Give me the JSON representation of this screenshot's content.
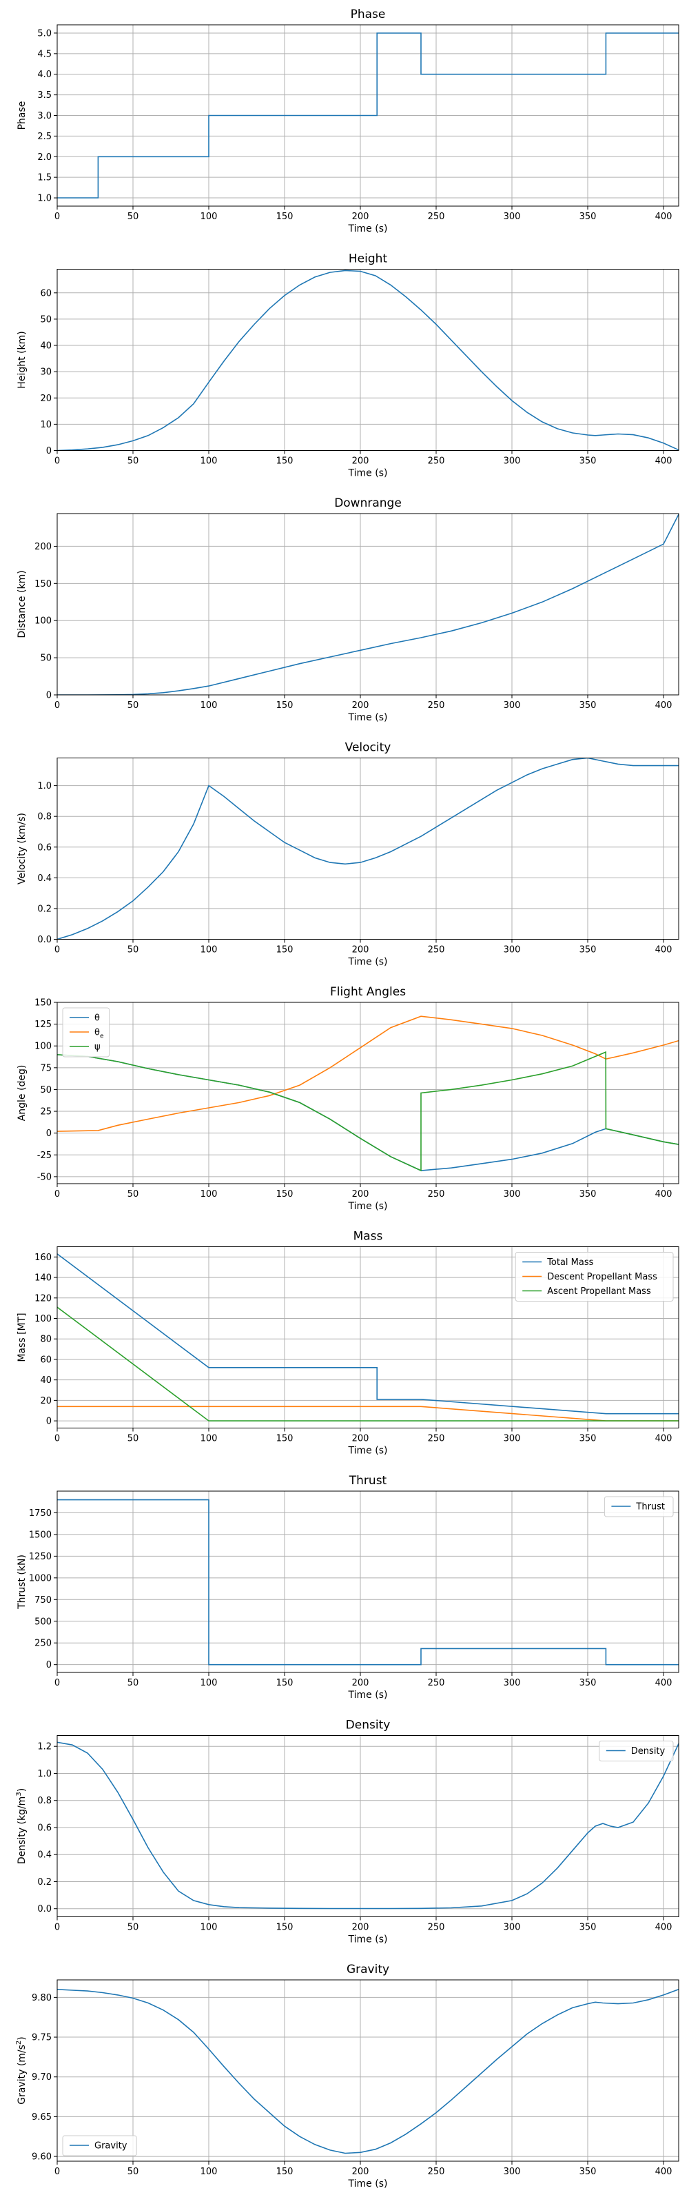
{
  "colors": {
    "blue": "#1f77b4",
    "orange": "#ff7f0e",
    "green": "#2ca02c",
    "grid": "#b0b0b0"
  },
  "chart_data": [
    {
      "type": "line",
      "title": "Phase",
      "xlabel": "Time (s)",
      "ylabel": "Phase",
      "xlim": [
        0,
        410
      ],
      "ylim": [
        0.8,
        5.2
      ],
      "xticks": [
        0,
        50,
        100,
        150,
        200,
        250,
        300,
        350,
        400
      ],
      "yticks": [
        1.0,
        1.5,
        2.0,
        2.5,
        3.0,
        3.5,
        4.0,
        4.5,
        5.0
      ],
      "tick_decimals": 1,
      "grid": true,
      "series": [
        {
          "color": "blue",
          "step": true,
          "x": [
            0,
            27,
            100,
            211,
            240,
            362,
            410
          ],
          "y": [
            1,
            2,
            3,
            5,
            4,
            5,
            5
          ]
        }
      ]
    },
    {
      "type": "line",
      "title": "Height",
      "xlabel": "Time (s)",
      "ylabel": "Height (km)",
      "xlim": [
        0,
        410
      ],
      "ylim": [
        0,
        69
      ],
      "xticks": [
        0,
        50,
        100,
        150,
        200,
        250,
        300,
        350,
        400
      ],
      "yticks": [
        0,
        10,
        20,
        30,
        40,
        50,
        60
      ],
      "grid": true,
      "series": [
        {
          "color": "blue",
          "x": [
            0,
            10,
            20,
            30,
            40,
            50,
            60,
            70,
            80,
            90,
            100,
            110,
            120,
            130,
            140,
            150,
            160,
            170,
            180,
            190,
            200,
            210,
            220,
            230,
            240,
            250,
            260,
            270,
            280,
            290,
            300,
            310,
            320,
            330,
            340,
            350,
            355,
            360,
            370,
            380,
            390,
            400,
            410
          ],
          "y": [
            0,
            0.2,
            0.6,
            1.2,
            2.2,
            3.7,
            5.7,
            8.7,
            12.5,
            17.8,
            26.0,
            34.0,
            41.5,
            48.0,
            54.0,
            59.0,
            63.0,
            66.0,
            67.8,
            68.5,
            68.2,
            66.5,
            63.0,
            58.5,
            53.5,
            48.0,
            42.0,
            36.0,
            30.0,
            24.3,
            19.0,
            14.5,
            10.9,
            8.3,
            6.7,
            5.9,
            5.7,
            5.9,
            6.3,
            6.0,
            4.8,
            2.8,
            0.2
          ]
        }
      ]
    },
    {
      "type": "line",
      "title": "Downrange",
      "xlabel": "Time (s)",
      "ylabel": "Distance (km)",
      "xlim": [
        0,
        410
      ],
      "ylim": [
        0,
        244
      ],
      "xticks": [
        0,
        50,
        100,
        150,
        200,
        250,
        300,
        350,
        400
      ],
      "yticks": [
        0,
        50,
        100,
        150,
        200
      ],
      "grid": true,
      "series": [
        {
          "color": "blue",
          "x": [
            0,
            20,
            40,
            50,
            60,
            70,
            80,
            90,
            100,
            120,
            140,
            160,
            180,
            200,
            220,
            240,
            260,
            280,
            300,
            320,
            340,
            360,
            380,
            400,
            410
          ],
          "y": [
            0,
            0,
            0.2,
            0.6,
            1.5,
            3,
            5.5,
            8.5,
            12,
            22,
            32,
            42,
            51,
            60,
            69,
            77,
            86,
            97,
            110,
            125,
            143,
            163,
            183,
            203,
            243
          ]
        }
      ]
    },
    {
      "type": "line",
      "title": "Velocity",
      "xlabel": "Time (s)",
      "ylabel": "Velocity (km/s)",
      "xlim": [
        0,
        410
      ],
      "ylim": [
        0,
        1.18
      ],
      "xticks": [
        0,
        50,
        100,
        150,
        200,
        250,
        300,
        350,
        400
      ],
      "yticks": [
        0.0,
        0.2,
        0.4,
        0.6,
        0.8,
        1.0
      ],
      "tick_decimals": 1,
      "grid": true,
      "series": [
        {
          "color": "blue",
          "x": [
            0,
            10,
            20,
            30,
            40,
            50,
            60,
            70,
            80,
            90,
            100,
            110,
            120,
            130,
            140,
            150,
            160,
            170,
            180,
            190,
            200,
            210,
            220,
            230,
            240,
            250,
            260,
            270,
            280,
            290,
            300,
            310,
            320,
            330,
            340,
            350,
            360,
            370,
            380,
            390,
            400,
            410
          ],
          "y": [
            0,
            0.03,
            0.07,
            0.12,
            0.18,
            0.25,
            0.34,
            0.44,
            0.57,
            0.75,
            1.0,
            0.93,
            0.85,
            0.77,
            0.7,
            0.63,
            0.58,
            0.53,
            0.5,
            0.49,
            0.5,
            0.53,
            0.57,
            0.62,
            0.67,
            0.73,
            0.79,
            0.85,
            0.91,
            0.97,
            1.02,
            1.07,
            1.11,
            1.14,
            1.17,
            1.18,
            1.16,
            1.14,
            1.13,
            1.13,
            1.13,
            1.13
          ]
        }
      ]
    },
    {
      "type": "line",
      "title": "Flight Angles",
      "xlabel": "Time (s)",
      "ylabel": "Angle (deg)",
      "xlim": [
        0,
        410
      ],
      "ylim": [
        -58,
        150
      ],
      "xticks": [
        0,
        50,
        100,
        150,
        200,
        250,
        300,
        350,
        400
      ],
      "yticks": [
        -50,
        -25,
        0,
        25,
        50,
        75,
        100,
        125,
        150
      ],
      "grid": true,
      "legend": {
        "position": "top-left",
        "entries": [
          "θ",
          "θ",
          "ψ"
        ],
        "subscripts": [
          "",
          "e",
          ""
        ],
        "colors": [
          "blue",
          "orange",
          "green"
        ]
      },
      "series": [
        {
          "color": "blue",
          "x": [
            0,
            20,
            40,
            60,
            80,
            100,
            120,
            140,
            160,
            180,
            200,
            220,
            240,
            260,
            280,
            300,
            320,
            340,
            355,
            362,
            380,
            400,
            410
          ],
          "y": [
            90,
            88,
            82,
            74,
            67,
            61,
            55,
            47,
            35,
            16,
            -6,
            -27,
            -43,
            -40,
            -35,
            -30,
            -23,
            -12,
            1,
            5,
            -2,
            -10,
            -13
          ]
        },
        {
          "color": "orange",
          "x": [
            0,
            27,
            40,
            60,
            80,
            100,
            120,
            140,
            160,
            180,
            200,
            220,
            240,
            260,
            280,
            300,
            320,
            340,
            355,
            362,
            380,
            400,
            410
          ],
          "y": [
            2,
            3,
            9,
            16,
            23,
            29,
            35,
            43,
            55,
            75,
            98,
            121,
            134,
            130,
            125,
            120,
            112,
            101,
            91,
            85,
            92,
            101,
            106
          ]
        },
        {
          "color": "green",
          "x": [
            0,
            20,
            40,
            60,
            80,
            100,
            120,
            140,
            160,
            180,
            200,
            220,
            240,
            240.01,
            260,
            280,
            300,
            320,
            340,
            361.9,
            362,
            380,
            400,
            410
          ],
          "y": [
            90,
            88,
            82,
            74,
            67,
            61,
            55,
            47,
            35,
            16,
            -6,
            -27,
            -43,
            46,
            50,
            55,
            61,
            68,
            77,
            93,
            5,
            -2,
            -10,
            -13
          ]
        }
      ]
    },
    {
      "type": "line",
      "title": "Mass",
      "xlabel": "Time (s)",
      "ylabel": "Mass [MT]",
      "xlim": [
        0,
        410
      ],
      "ylim": [
        -7,
        170
      ],
      "xticks": [
        0,
        50,
        100,
        150,
        200,
        250,
        300,
        350,
        400
      ],
      "yticks": [
        0,
        20,
        40,
        60,
        80,
        100,
        120,
        140,
        160
      ],
      "grid": true,
      "legend": {
        "position": "top-right",
        "entries": [
          "Total Mass",
          "Descent Propellant Mass",
          "Ascent Propellant Mass"
        ],
        "colors": [
          "blue",
          "orange",
          "green"
        ]
      },
      "series": [
        {
          "color": "blue",
          "x": [
            0,
            100,
            211,
            211.01,
            240,
            362,
            410
          ],
          "y": [
            163,
            52,
            52,
            21,
            21,
            7,
            7
          ]
        },
        {
          "color": "orange",
          "x": [
            0,
            240,
            362,
            410
          ],
          "y": [
            14,
            14,
            0,
            0
          ]
        },
        {
          "color": "green",
          "x": [
            0,
            100,
            410
          ],
          "y": [
            111,
            0,
            0
          ]
        }
      ]
    },
    {
      "type": "line",
      "title": "Thrust",
      "xlabel": "Time (s)",
      "ylabel": "Thrust (kN)",
      "xlim": [
        0,
        410
      ],
      "ylim": [
        -90,
        2000
      ],
      "xticks": [
        0,
        50,
        100,
        150,
        200,
        250,
        300,
        350,
        400
      ],
      "yticks": [
        0,
        250,
        500,
        750,
        1000,
        1250,
        1500,
        1750
      ],
      "grid": true,
      "legend": {
        "position": "top-right",
        "entries": [
          "Thrust"
        ],
        "colors": [
          "blue"
        ]
      },
      "series": [
        {
          "color": "blue",
          "step": true,
          "x": [
            0,
            100,
            240,
            362,
            410
          ],
          "y": [
            1900,
            0,
            185,
            0,
            0
          ]
        }
      ]
    },
    {
      "type": "line",
      "title": "Density",
      "xlabel": "Time (s)",
      "ylabel": "Density (kg/m",
      "ylabel_sup": "3",
      "ylabel_end": ")",
      "xlim": [
        0,
        410
      ],
      "ylim": [
        -0.06,
        1.28
      ],
      "xticks": [
        0,
        50,
        100,
        150,
        200,
        250,
        300,
        350,
        400
      ],
      "yticks": [
        0.0,
        0.2,
        0.4,
        0.6,
        0.8,
        1.0,
        1.2
      ],
      "tick_decimals": 1,
      "grid": true,
      "legend": {
        "position": "top-right",
        "entries": [
          "Density"
        ],
        "colors": [
          "blue"
        ]
      },
      "series": [
        {
          "color": "blue",
          "x": [
            0,
            10,
            20,
            30,
            40,
            50,
            60,
            70,
            80,
            90,
            100,
            110,
            120,
            140,
            160,
            180,
            200,
            220,
            240,
            260,
            280,
            300,
            310,
            320,
            330,
            340,
            350,
            355,
            360,
            365,
            370,
            380,
            390,
            400,
            410
          ],
          "y": [
            1.23,
            1.21,
            1.15,
            1.03,
            0.86,
            0.66,
            0.45,
            0.27,
            0.13,
            0.06,
            0.03,
            0.015,
            0.008,
            0.004,
            0.002,
            0.001,
            0.001,
            0.001,
            0.002,
            0.006,
            0.02,
            0.06,
            0.11,
            0.19,
            0.3,
            0.43,
            0.56,
            0.61,
            0.63,
            0.61,
            0.6,
            0.64,
            0.78,
            0.98,
            1.22
          ]
        }
      ]
    },
    {
      "type": "line",
      "title": "Gravity",
      "xlabel": "Time (s)",
      "ylabel": "Gravity (m/s",
      "ylabel_sup": "2",
      "ylabel_end": ")",
      "xlim": [
        0,
        410
      ],
      "ylim": [
        9.594,
        9.822
      ],
      "xticks": [
        0,
        50,
        100,
        150,
        200,
        250,
        300,
        350,
        400
      ],
      "yticks": [
        9.6,
        9.65,
        9.7,
        9.75,
        9.8
      ],
      "tick_decimals": 2,
      "grid": true,
      "legend": {
        "position": "bottom-left",
        "entries": [
          "Gravity"
        ],
        "colors": [
          "blue"
        ]
      },
      "series": [
        {
          "color": "blue",
          "x": [
            0,
            10,
            20,
            30,
            40,
            50,
            60,
            70,
            80,
            90,
            100,
            110,
            120,
            130,
            140,
            150,
            160,
            170,
            180,
            190,
            200,
            210,
            220,
            230,
            240,
            250,
            260,
            270,
            280,
            290,
            300,
            310,
            320,
            330,
            340,
            350,
            355,
            360,
            370,
            380,
            390,
            400,
            410
          ],
          "y": [
            9.81,
            9.809,
            9.808,
            9.806,
            9.803,
            9.799,
            9.793,
            9.784,
            9.772,
            9.756,
            9.735,
            9.713,
            9.692,
            9.672,
            9.655,
            9.638,
            9.625,
            9.615,
            9.608,
            9.604,
            9.605,
            9.609,
            9.617,
            9.628,
            9.641,
            9.655,
            9.671,
            9.688,
            9.705,
            9.722,
            9.738,
            9.754,
            9.767,
            9.778,
            9.787,
            9.792,
            9.794,
            9.793,
            9.792,
            9.793,
            9.797,
            9.803,
            9.81
          ]
        }
      ]
    }
  ]
}
